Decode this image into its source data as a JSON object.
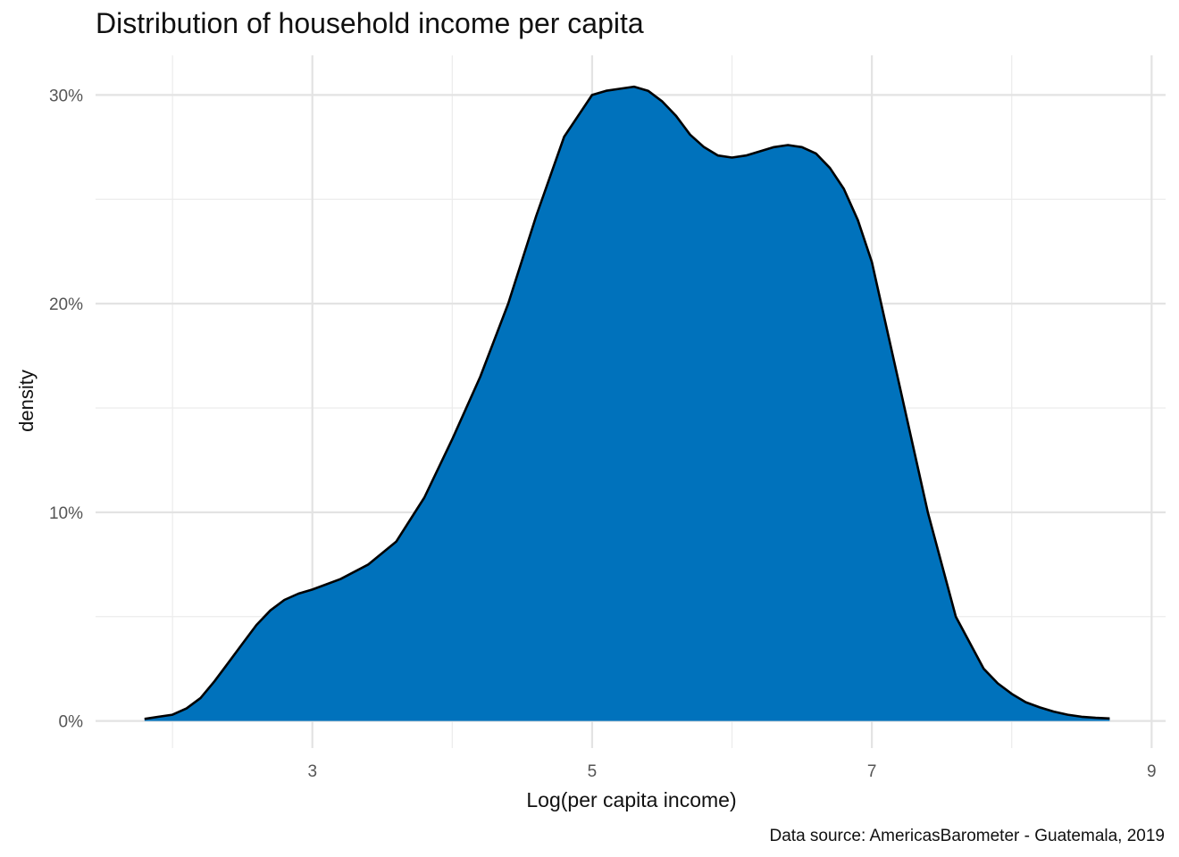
{
  "chart_data": {
    "type": "area",
    "title": "Distribution of household income per capita",
    "xlabel": "Log(per capita income)",
    "ylabel": "density",
    "caption": "Data source: AmericasBarometer - Guatemala, 2019",
    "xlim": [
      1.45,
      9.1
    ],
    "ylim": [
      -0.013,
      0.319
    ],
    "x_ticks": [
      3,
      5,
      7,
      9
    ],
    "x_minor_ticks": [
      2,
      4,
      6,
      8
    ],
    "y_ticks": [
      0,
      0.1,
      0.2,
      0.3
    ],
    "y_tick_labels": [
      "0%",
      "10%",
      "20%",
      "30%"
    ],
    "y_minor_ticks": [
      0.05,
      0.15,
      0.25
    ],
    "grid": true,
    "fill_color": "#0072bc",
    "line_color": "#000000",
    "series": [
      {
        "x": [
          1.8,
          1.9,
          2.0,
          2.1,
          2.2,
          2.3,
          2.4,
          2.5,
          2.6,
          2.7,
          2.8,
          2.9,
          3.0,
          3.2,
          3.4,
          3.6,
          3.8,
          4.0,
          4.2,
          4.4,
          4.6,
          4.8,
          5.0,
          5.1,
          5.2,
          5.3,
          5.4,
          5.5,
          5.6,
          5.7,
          5.8,
          5.9,
          6.0,
          6.1,
          6.2,
          6.3,
          6.4,
          6.5,
          6.6,
          6.7,
          6.8,
          6.9,
          7.0,
          7.2,
          7.4,
          7.6,
          7.8,
          7.9,
          8.0,
          8.1,
          8.2,
          8.3,
          8.4,
          8.5,
          8.6,
          8.7
        ],
        "y": [
          0.001,
          0.002,
          0.003,
          0.006,
          0.011,
          0.019,
          0.028,
          0.037,
          0.046,
          0.053,
          0.058,
          0.061,
          0.063,
          0.068,
          0.075,
          0.086,
          0.107,
          0.135,
          0.165,
          0.2,
          0.242,
          0.28,
          0.3,
          0.302,
          0.303,
          0.304,
          0.302,
          0.297,
          0.29,
          0.281,
          0.275,
          0.271,
          0.27,
          0.271,
          0.273,
          0.275,
          0.276,
          0.275,
          0.272,
          0.265,
          0.255,
          0.24,
          0.22,
          0.16,
          0.1,
          0.05,
          0.025,
          0.018,
          0.013,
          0.009,
          0.0065,
          0.0045,
          0.003,
          0.002,
          0.0015,
          0.0012
        ]
      }
    ]
  }
}
